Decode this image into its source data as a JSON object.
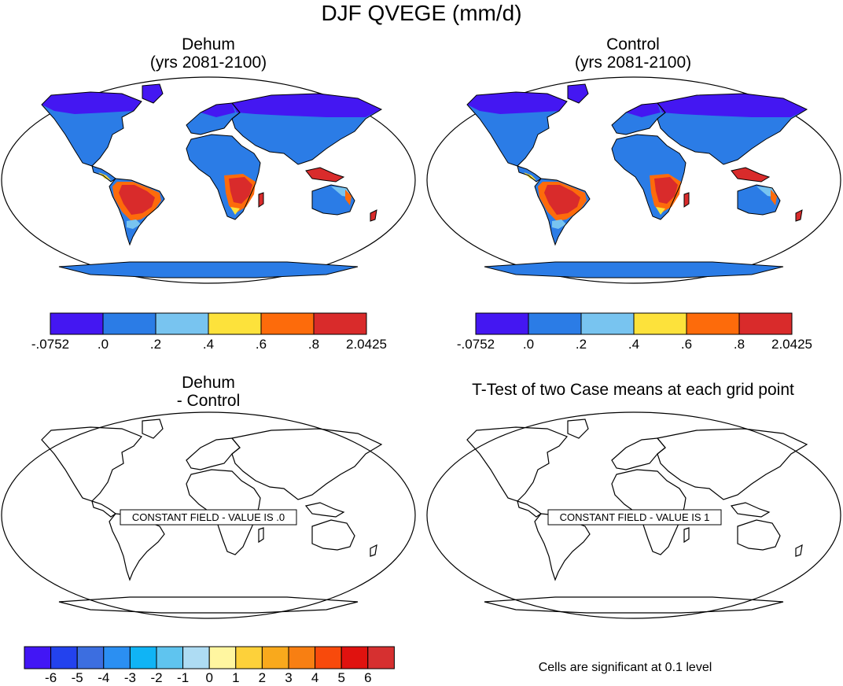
{
  "title": "DJF QVEGE (mm/d)",
  "panels": [
    {
      "id": "dehum",
      "title_line1": "Dehum",
      "title_line2": "(yrs 2081-2100)"
    },
    {
      "id": "control",
      "title_line1": "Control",
      "title_line2": "(yrs 2081-2100)"
    },
    {
      "id": "diff",
      "title_line1": "Dehum",
      "title_line2": "- Control",
      "message": "CONSTANT FIELD - VALUE IS .0"
    },
    {
      "id": "ttest",
      "title_line1": "T-Test of two Case means at each grid point",
      "message": "CONSTANT FIELD - VALUE IS 1"
    }
  ],
  "colorbar_top": {
    "colors": [
      "#4417f2",
      "#2b7ce6",
      "#78c4f0",
      "#fde23b",
      "#fd6b0b",
      "#d92b2b"
    ],
    "labels": [
      "-.0752",
      ".0",
      ".2",
      ".4",
      ".6",
      ".8",
      "2.0425"
    ]
  },
  "colorbar_bottom": {
    "colors": [
      "#4216f5",
      "#2342ee",
      "#3c6ee0",
      "#2b8ff2",
      "#10b4f5",
      "#5fc4ef",
      "#aedcf3",
      "#fff6a0",
      "#fdd13a",
      "#f9a91c",
      "#f87f12",
      "#f84a0c",
      "#e0120f",
      "#d63030"
    ],
    "labels": [
      "-6",
      "-5",
      "-4",
      "-3",
      "-2",
      "-1",
      "0",
      "1",
      "2",
      "3",
      "4",
      "5",
      "6"
    ]
  },
  "footnote": "Cells are significant at 0.1 level",
  "map_colors": {
    "low": "#4417f2",
    "mid": "#2b7ce6",
    "light": "#78c4f0",
    "yellow": "#fde23b",
    "orange": "#fd6b0b",
    "high": "#d92b2b"
  }
}
